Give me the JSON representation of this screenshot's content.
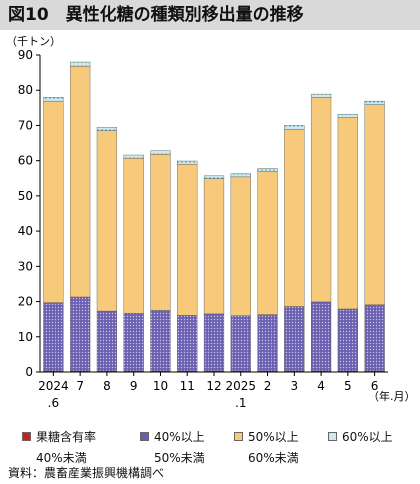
{
  "title": "図10　異性化糖の種類別移出量の推移",
  "source": "資料：農畜産業振興機構調べ",
  "colors": {
    "s0": "#d7191c",
    "s1": "#6a5fb0",
    "s2": "#f7c97b",
    "s3": "#cde8ee"
  },
  "chart_data": {
    "type": "bar",
    "stacked": true,
    "ylabel": "（千トン）",
    "xlabel": "（年.月）",
    "ylim": [
      0,
      90
    ],
    "yticks": [
      0,
      10,
      20,
      30,
      40,
      50,
      60,
      70,
      80,
      90
    ],
    "grid": false,
    "legend_position": "bottom",
    "categories": [
      {
        "l1": "2024",
        "l2": ".6"
      },
      {
        "l1": "7",
        "l2": ""
      },
      {
        "l1": "8",
        "l2": ""
      },
      {
        "l1": "9",
        "l2": ""
      },
      {
        "l1": "10",
        "l2": ""
      },
      {
        "l1": "11",
        "l2": ""
      },
      {
        "l1": "12",
        "l2": ""
      },
      {
        "l1": "2025",
        "l2": ".1"
      },
      {
        "l1": "2",
        "l2": ""
      },
      {
        "l1": "3",
        "l2": ""
      },
      {
        "l1": "4",
        "l2": ""
      },
      {
        "l1": "5",
        "l2": ""
      },
      {
        "l1": "6",
        "l2": ""
      }
    ],
    "series": [
      {
        "name": "果糖含有率 40%未満",
        "label_1": "果糖含有率",
        "label_2": "40%未満",
        "values": [
          0.3,
          0.3,
          0.3,
          0.3,
          0.3,
          0.3,
          0.3,
          0.3,
          0.3,
          0.3,
          0.3,
          0.3,
          0.3
        ]
      },
      {
        "name": "40%以上 50%未満",
        "label_1": "40%以上",
        "label_2": "50%未満",
        "values": [
          19.4,
          21.0,
          17.0,
          16.4,
          17.2,
          15.8,
          16.2,
          15.7,
          16.0,
          18.3,
          19.6,
          17.6,
          18.8
        ]
      },
      {
        "name": "50%以上 60%未満",
        "label_1": "50%以上",
        "label_2": "60%未満",
        "values": [
          57.2,
          65.5,
          51.2,
          44.0,
          44.3,
          42.9,
          38.4,
          39.4,
          40.6,
          50.3,
          58.0,
          54.3,
          56.8
        ]
      },
      {
        "name": "60%以上",
        "label_1": "60%以上",
        "label_2": "",
        "values": [
          1.1,
          1.2,
          1.0,
          0.9,
          1.0,
          0.9,
          0.8,
          0.9,
          0.9,
          1.1,
          1.0,
          1.0,
          1.0
        ]
      }
    ]
  }
}
